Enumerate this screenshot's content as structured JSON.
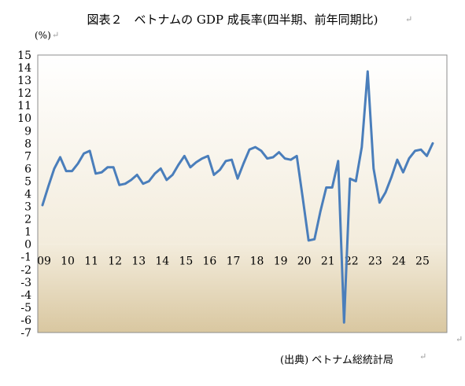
{
  "title": "図表２　ベトナムの GDP 成長率(四半期、前年同期比)",
  "unit_label": "(%)",
  "source": "(出典) ベトナム総統計局",
  "colors": {
    "line": "#4a7ebb",
    "upper_bg_top": "#ffffff",
    "upper_bg_bottom": "#f3ecdc",
    "lower_bg_top": "#f3ecdc",
    "lower_bg_bottom": "#d9c7a0",
    "frame": "#8c8c8c"
  },
  "chart_data": {
    "type": "line",
    "title": "図表２　ベトナムの GDP 成長率(四半期、前年同期比)",
    "ylabel": "(%)",
    "ylim": [
      -7,
      15
    ],
    "yticks": [
      "15",
      "14",
      "13",
      "12",
      "11",
      "10",
      "9",
      "8",
      "7",
      "6",
      "5",
      "4",
      "3",
      "2",
      "1",
      "0",
      "-1",
      "-2",
      "-3",
      "-4",
      "-5",
      "-6",
      "-7"
    ],
    "xticks": [
      "09",
      "10",
      "11",
      "12",
      "13",
      "14",
      "15",
      "16",
      "17",
      "18",
      "19",
      "20",
      "21",
      "22",
      "23",
      "24",
      "25"
    ],
    "grid": false,
    "series": [
      {
        "values": [
          3.1,
          4.6,
          6.0,
          6.9,
          5.8,
          5.8,
          6.4,
          7.2,
          7.4,
          5.6,
          5.7,
          6.1,
          6.1,
          4.7,
          4.8,
          5.1,
          5.5,
          4.8,
          5.0,
          5.6,
          6.0,
          5.1,
          5.5,
          6.3,
          7.0,
          6.1,
          6.5,
          6.8,
          7.0,
          5.5,
          5.9,
          6.6,
          6.7,
          5.2,
          6.4,
          7.5,
          7.7,
          7.4,
          6.8,
          6.9,
          7.3,
          6.8,
          6.7,
          7.0,
          3.7,
          0.3,
          0.4,
          2.6,
          4.5,
          4.5,
          6.6,
          -6.2,
          5.2,
          5.0,
          7.7,
          13.7,
          6.0,
          3.3,
          4.1,
          5.3,
          6.7,
          5.7,
          6.8,
          7.4,
          7.5,
          7.0,
          8.0
        ]
      }
    ]
  }
}
